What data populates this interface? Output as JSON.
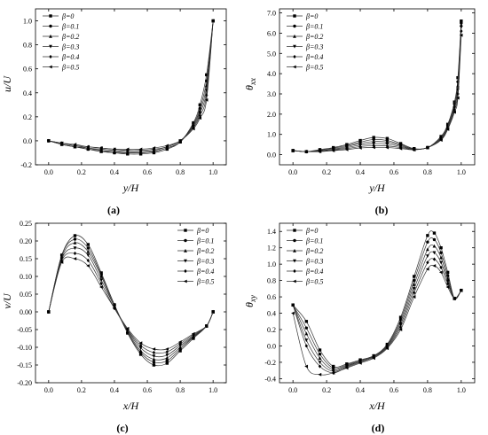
{
  "legend_labels": [
    "β=0",
    "β=0.1",
    "β=0.2",
    "β=0.3",
    "β=0.4",
    "β=0.5"
  ],
  "chart_data": [
    {
      "type": "line",
      "panel": "(a)",
      "xlabel": "y/H",
      "ylabel_main": "u/U",
      "ylabel_sub": "",
      "xlim": [
        -0.08,
        1.08
      ],
      "ylim": [
        -0.2,
        1.1
      ],
      "xticks": [
        "0.0",
        "0.2",
        "0.4",
        "0.6",
        "0.8",
        "1.0"
      ],
      "yticks": [
        "-0.2",
        "0.0",
        "0.2",
        "0.4",
        "0.6",
        "0.8",
        "1.0"
      ],
      "legend_position": "top-left",
      "x": [
        0.0,
        0.08,
        0.16,
        0.24,
        0.32,
        0.4,
        0.48,
        0.56,
        0.64,
        0.72,
        0.8,
        0.88,
        0.92,
        0.96,
        1.0
      ],
      "series": [
        {
          "name": "β=0",
          "values": [
            0.0,
            -0.03,
            -0.05,
            -0.07,
            -0.09,
            -0.1,
            -0.11,
            -0.11,
            -0.1,
            -0.07,
            -0.01,
            0.15,
            0.3,
            0.55,
            1.0
          ]
        },
        {
          "name": "β=0.1",
          "values": [
            0.0,
            -0.03,
            -0.05,
            -0.07,
            -0.08,
            -0.1,
            -0.1,
            -0.1,
            -0.09,
            -0.06,
            -0.01,
            0.14,
            0.27,
            0.5,
            1.0
          ]
        },
        {
          "name": "β=0.2",
          "values": [
            0.0,
            -0.03,
            -0.05,
            -0.06,
            -0.08,
            -0.09,
            -0.1,
            -0.1,
            -0.09,
            -0.06,
            -0.01,
            0.13,
            0.25,
            0.46,
            1.0
          ]
        },
        {
          "name": "β=0.3",
          "values": [
            0.0,
            -0.02,
            -0.04,
            -0.06,
            -0.07,
            -0.08,
            -0.09,
            -0.09,
            -0.08,
            -0.05,
            0.0,
            0.12,
            0.23,
            0.42,
            1.0
          ]
        },
        {
          "name": "β=0.4",
          "values": [
            0.0,
            -0.02,
            -0.04,
            -0.05,
            -0.06,
            -0.07,
            -0.08,
            -0.08,
            -0.07,
            -0.05,
            0.0,
            0.11,
            0.21,
            0.38,
            1.0
          ]
        },
        {
          "name": "β=0.5",
          "values": [
            0.0,
            -0.02,
            -0.03,
            -0.05,
            -0.06,
            -0.07,
            -0.07,
            -0.07,
            -0.06,
            -0.04,
            0.0,
            0.1,
            0.19,
            0.34,
            1.0
          ]
        }
      ]
    },
    {
      "type": "line",
      "panel": "(b)",
      "xlabel": "y/H",
      "ylabel_main": "θ",
      "ylabel_sub": "xx",
      "xlim": [
        -0.08,
        1.08
      ],
      "ylim": [
        -0.5,
        7.2
      ],
      "xticks": [
        "0.0",
        "0.2",
        "0.4",
        "0.6",
        "0.8",
        "1.0"
      ],
      "yticks": [
        "0.0",
        "1.0",
        "2.0",
        "3.0",
        "4.0",
        "5.0",
        "6.0",
        "7.0"
      ],
      "legend_position": "top-left",
      "x": [
        0.0,
        0.08,
        0.16,
        0.24,
        0.32,
        0.4,
        0.48,
        0.56,
        0.64,
        0.72,
        0.8,
        0.88,
        0.92,
        0.96,
        0.98,
        1.0
      ],
      "series": [
        {
          "name": "β=0",
          "values": [
            0.2,
            0.15,
            0.25,
            0.35,
            0.5,
            0.7,
            0.85,
            0.8,
            0.55,
            0.3,
            0.35,
            0.9,
            1.5,
            2.6,
            3.8,
            6.6
          ]
        },
        {
          "name": "β=0.1",
          "values": [
            0.2,
            0.15,
            0.22,
            0.32,
            0.45,
            0.62,
            0.75,
            0.7,
            0.5,
            0.28,
            0.35,
            0.85,
            1.45,
            2.5,
            3.6,
            6.5
          ]
        },
        {
          "name": "β=0.2",
          "values": [
            0.2,
            0.15,
            0.2,
            0.28,
            0.4,
            0.55,
            0.65,
            0.62,
            0.45,
            0.27,
            0.35,
            0.8,
            1.4,
            2.4,
            3.4,
            6.4
          ]
        },
        {
          "name": "β=0.3",
          "values": [
            0.2,
            0.15,
            0.18,
            0.25,
            0.35,
            0.47,
            0.55,
            0.52,
            0.4,
            0.26,
            0.35,
            0.78,
            1.35,
            2.3,
            3.2,
            6.3
          ]
        },
        {
          "name": "β=0.4",
          "values": [
            0.2,
            0.15,
            0.16,
            0.22,
            0.3,
            0.4,
            0.45,
            0.43,
            0.35,
            0.25,
            0.35,
            0.75,
            1.3,
            2.2,
            3.0,
            6.1
          ]
        },
        {
          "name": "β=0.5",
          "values": [
            0.2,
            0.15,
            0.15,
            0.2,
            0.25,
            0.33,
            0.36,
            0.35,
            0.3,
            0.24,
            0.35,
            0.72,
            1.25,
            2.1,
            2.8,
            5.9
          ]
        }
      ]
    },
    {
      "type": "line",
      "panel": "(c)",
      "xlabel": "x/H",
      "ylabel_main": "v/U",
      "ylabel_sub": "",
      "xlim": [
        -0.08,
        1.08
      ],
      "ylim": [
        -0.2,
        0.25
      ],
      "xticks": [
        "0.0",
        "0.2",
        "0.4",
        "0.6",
        "0.8",
        "1.0"
      ],
      "yticks": [
        "-0.20",
        "-0.15",
        "-0.10",
        "-0.05",
        "0.00",
        "0.05",
        "0.10",
        "0.15",
        "0.20",
        "0.25"
      ],
      "legend_position": "top-right",
      "x": [
        0.0,
        0.08,
        0.16,
        0.24,
        0.32,
        0.4,
        0.48,
        0.56,
        0.64,
        0.72,
        0.8,
        0.88,
        0.96,
        1.0
      ],
      "series": [
        {
          "name": "β=0",
          "values": [
            0.0,
            0.16,
            0.215,
            0.19,
            0.11,
            0.02,
            -0.06,
            -0.12,
            -0.15,
            -0.145,
            -0.11,
            -0.075,
            -0.04,
            0.0
          ]
        },
        {
          "name": "β=0.1",
          "values": [
            0.0,
            0.16,
            0.205,
            0.18,
            0.105,
            0.02,
            -0.058,
            -0.115,
            -0.142,
            -0.138,
            -0.105,
            -0.072,
            -0.04,
            0.0
          ]
        },
        {
          "name": "β=0.2",
          "values": [
            0.0,
            0.155,
            0.195,
            0.17,
            0.1,
            0.015,
            -0.055,
            -0.11,
            -0.134,
            -0.13,
            -0.1,
            -0.07,
            -0.04,
            0.0
          ]
        },
        {
          "name": "β=0.3",
          "values": [
            0.0,
            0.15,
            0.18,
            0.16,
            0.09,
            0.015,
            -0.052,
            -0.102,
            -0.125,
            -0.122,
            -0.095,
            -0.068,
            -0.04,
            0.0
          ]
        },
        {
          "name": "β=0.4",
          "values": [
            0.0,
            0.145,
            0.165,
            0.145,
            0.08,
            0.01,
            -0.05,
            -0.095,
            -0.115,
            -0.113,
            -0.09,
            -0.065,
            -0.04,
            0.0
          ]
        },
        {
          "name": "β=0.5",
          "values": [
            0.0,
            0.14,
            0.15,
            0.13,
            0.07,
            0.01,
            -0.047,
            -0.088,
            -0.105,
            -0.105,
            -0.085,
            -0.062,
            -0.04,
            0.0
          ]
        }
      ]
    },
    {
      "type": "line",
      "panel": "(d)",
      "xlabel": "x/H",
      "ylabel_main": "θ",
      "ylabel_sub": "xy",
      "xlim": [
        -0.08,
        1.08
      ],
      "ylim": [
        -0.45,
        1.5
      ],
      "xticks": [
        "0.0",
        "0.2",
        "0.4",
        "0.6",
        "0.8",
        "1.0"
      ],
      "yticks": [
        "-0.4",
        "-0.2",
        "0.0",
        "0.2",
        "0.4",
        "0.6",
        "0.8",
        "1.0",
        "1.2",
        "1.4"
      ],
      "legend_position": "top-left",
      "x": [
        0.0,
        0.08,
        0.16,
        0.24,
        0.32,
        0.4,
        0.48,
        0.56,
        0.64,
        0.72,
        0.8,
        0.84,
        0.88,
        0.92,
        0.96,
        1.0
      ],
      "series": [
        {
          "name": "β=0",
          "values": [
            0.5,
            0.3,
            -0.05,
            -0.25,
            -0.22,
            -0.17,
            -0.12,
            0.02,
            0.35,
            0.85,
            1.35,
            1.38,
            1.2,
            0.9,
            0.58,
            0.68
          ]
        },
        {
          "name": "β=0.1",
          "values": [
            0.5,
            0.22,
            -0.1,
            -0.27,
            -0.23,
            -0.18,
            -0.12,
            0.01,
            0.32,
            0.8,
            1.27,
            1.3,
            1.14,
            0.86,
            0.58,
            0.68
          ]
        },
        {
          "name": "β=0.2",
          "values": [
            0.5,
            0.15,
            -0.15,
            -0.29,
            -0.24,
            -0.19,
            -0.13,
            0.0,
            0.29,
            0.75,
            1.18,
            1.22,
            1.08,
            0.82,
            0.58,
            0.68
          ]
        },
        {
          "name": "β=0.3",
          "values": [
            0.5,
            0.07,
            -0.2,
            -0.31,
            -0.25,
            -0.19,
            -0.13,
            -0.01,
            0.26,
            0.7,
            1.1,
            1.14,
            1.02,
            0.79,
            0.58,
            0.68
          ]
        },
        {
          "name": "β=0.4",
          "values": [
            0.5,
            0.0,
            -0.25,
            -0.33,
            -0.26,
            -0.2,
            -0.14,
            -0.02,
            0.23,
            0.65,
            1.02,
            1.06,
            0.96,
            0.76,
            0.58,
            0.68
          ]
        },
        {
          "name": "β=0.5",
          "values": [
            0.4,
            -0.25,
            -0.35,
            -0.33,
            -0.27,
            -0.21,
            -0.15,
            -0.03,
            0.2,
            0.6,
            0.94,
            0.98,
            0.9,
            0.72,
            0.58,
            0.68
          ]
        }
      ]
    }
  ]
}
